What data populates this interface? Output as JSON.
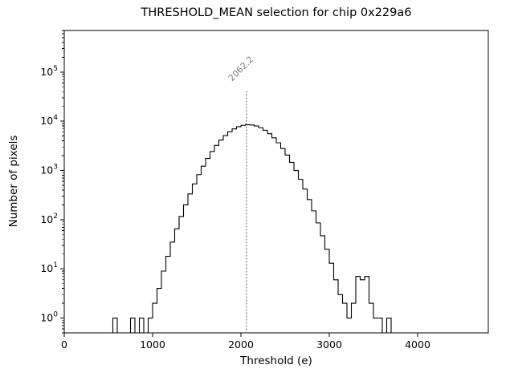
{
  "figure": {
    "title": "THRESHOLD_MEAN selection for chip 0x229a6",
    "xlabel": "Threshold (e)",
    "ylabel": "Number of pixels"
  },
  "chart_data": {
    "type": "bar",
    "subtype": "step-histogram",
    "title": "THRESHOLD_MEAN selection for chip 0x229a6",
    "xlabel": "Threshold (e)",
    "ylabel": "Number of pixels",
    "yscale": "log",
    "xlim": [
      0,
      4800
    ],
    "ylim": [
      0.5,
      700000
    ],
    "xticks": [
      0,
      1000,
      2000,
      3000,
      4000
    ],
    "ytick_exponents": [
      0,
      1,
      2,
      3,
      4,
      5
    ],
    "grid": false,
    "legend": false,
    "bins": {
      "start": 500,
      "width": 50
    },
    "counts": [
      0,
      1,
      0,
      0,
      0,
      1,
      0,
      1,
      0,
      1,
      2,
      4,
      9,
      18,
      35,
      65,
      116,
      200,
      333,
      533,
      822,
      1222,
      1753,
      2422,
      3225,
      4138,
      5116,
      6096,
      7001,
      7747,
      8262,
      8491,
      8410,
      8027,
      7383,
      6545,
      5590,
      4602,
      3652,
      2791,
      2057,
      1460,
      1000,
      659,
      419,
      256,
      151,
      86,
      47,
      25,
      13,
      6,
      3,
      2,
      1,
      2,
      7,
      6,
      7,
      2,
      1,
      1,
      0,
      1
    ],
    "vline": {
      "x": 2062.2,
      "label": "2062.2",
      "style": "dotted"
    },
    "colors": {
      "hist_line": "#000000",
      "axes": "#000000",
      "vline": "#808080",
      "annotation": "#7f7f7f",
      "background": "#ffffff"
    }
  }
}
